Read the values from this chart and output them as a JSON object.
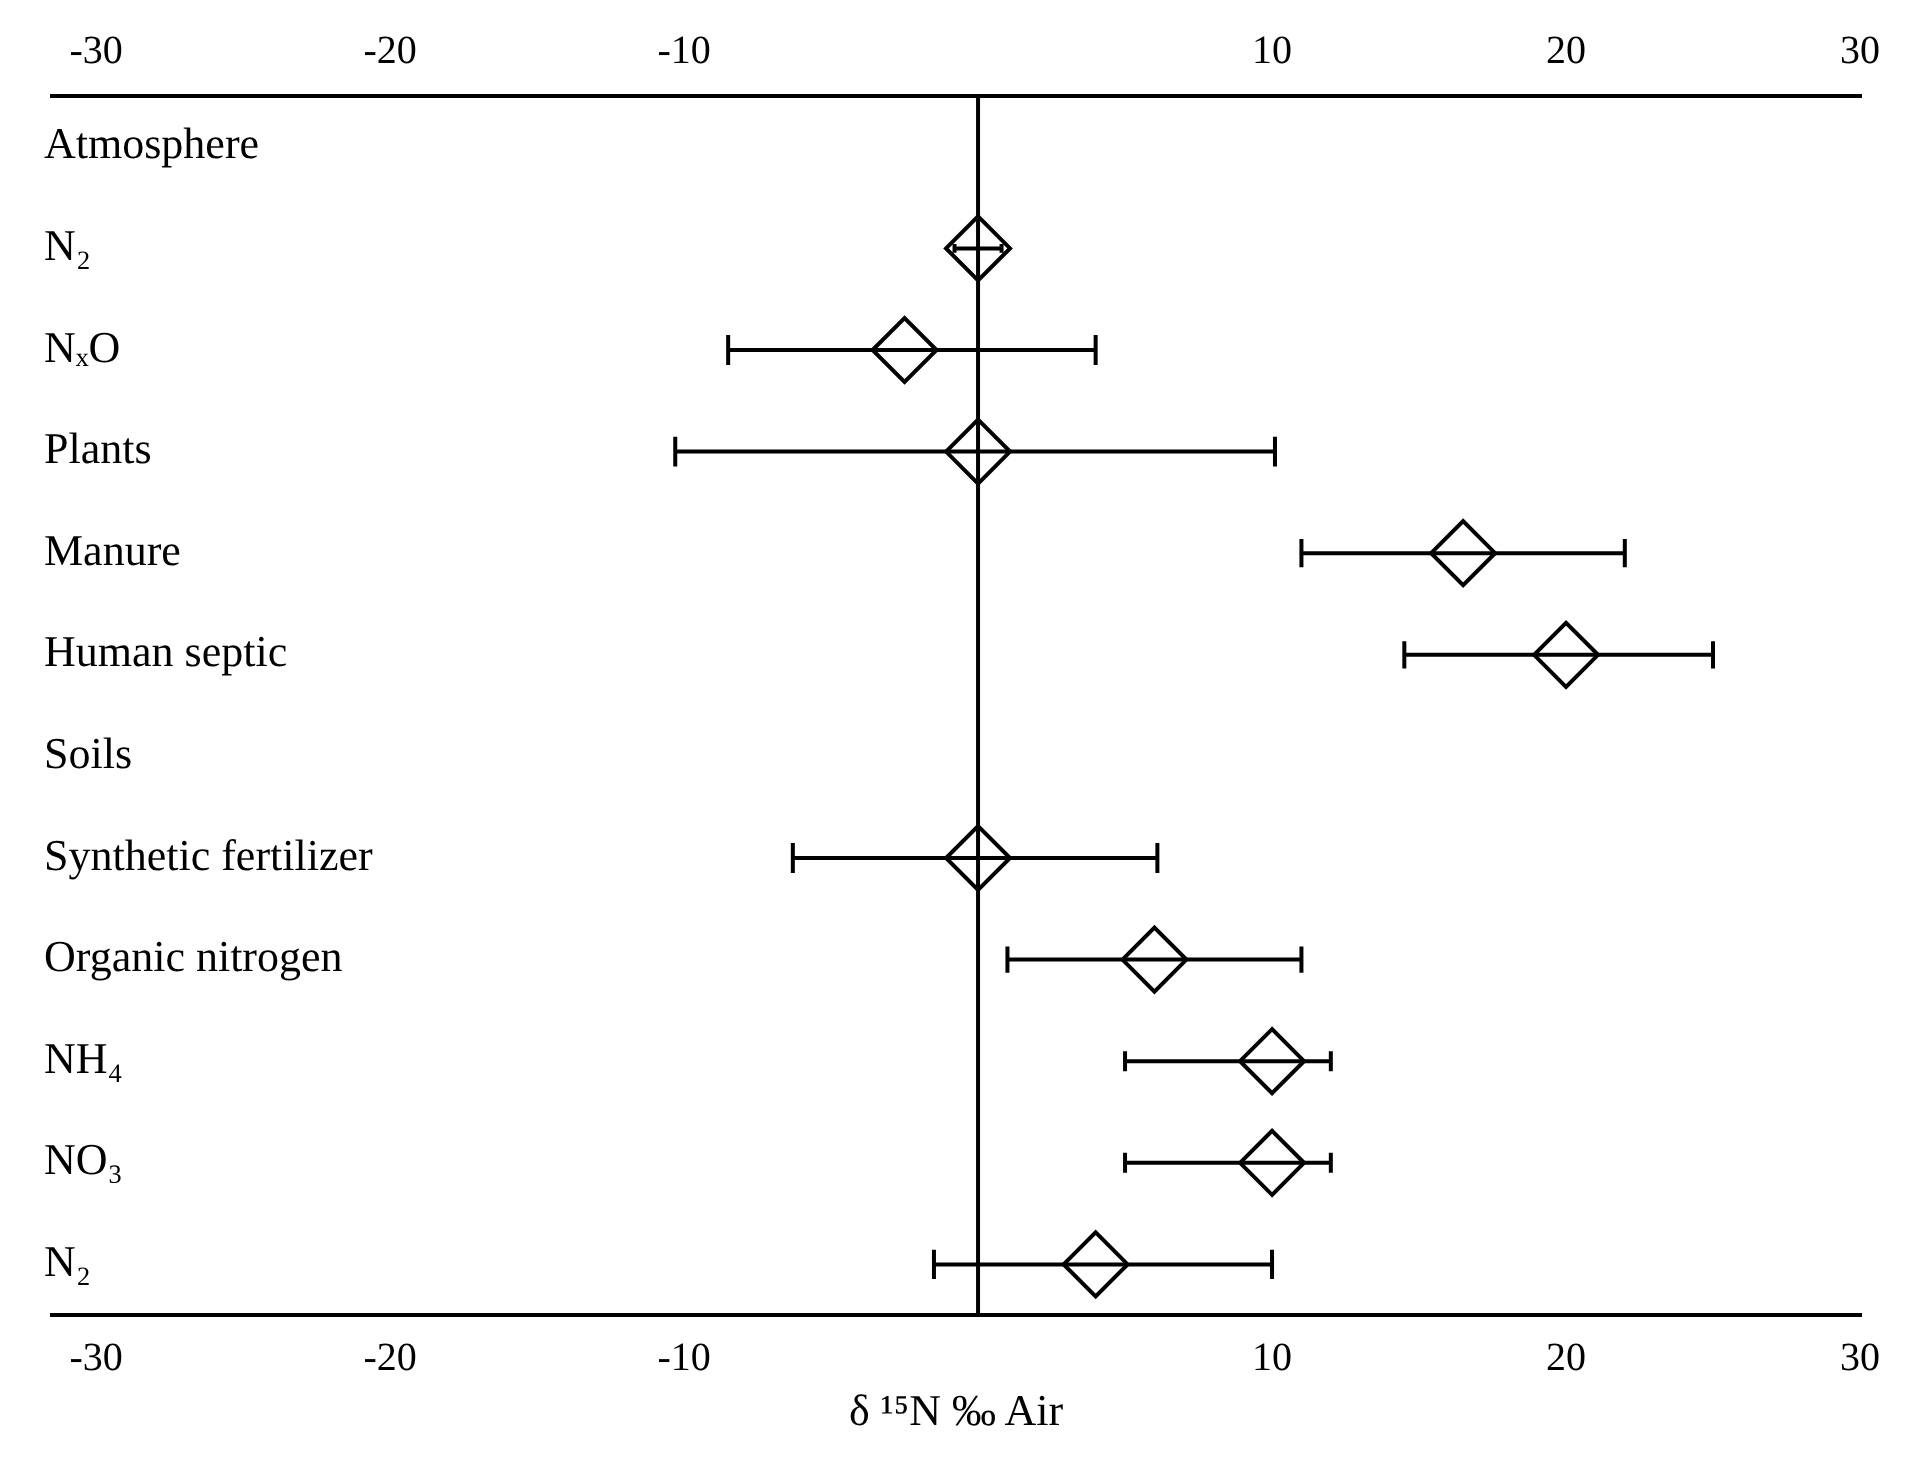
{
  "chart_data": {
    "type": "scatter",
    "orientation": "horizontal",
    "xlabel": "δ ¹⁵N ‰ Air",
    "categories": [
      "Atmosphere",
      "N₂",
      "NₓO",
      "Plants",
      "Manure",
      "Human septic",
      "Soils",
      "Synthetic fertilizer",
      "Organic nitrogen",
      "NH₄",
      "NO₃",
      "N₂"
    ],
    "series": [
      {
        "color": "#000000",
        "marker": "diamond",
        "values": [
          null,
          0,
          -2.5,
          0,
          16.5,
          20,
          null,
          0,
          6,
          10,
          10,
          4
        ],
        "errors": [
          null,
          [
            -0.8,
            0.8
          ],
          [
            -8.5,
            4
          ],
          [
            -10.3,
            10.1
          ],
          [
            11,
            22
          ],
          [
            14.5,
            25
          ],
          null,
          [
            -6.3,
            6.1
          ],
          [
            1,
            11
          ],
          [
            5,
            12
          ],
          [
            5,
            12
          ],
          [
            -1.5,
            10
          ]
        ]
      }
    ],
    "xlim": [
      -31.5,
      30
    ],
    "xticks": [
      -30,
      -20,
      -10,
      10,
      20,
      30
    ],
    "x2lim": [
      -31.5,
      30
    ],
    "x2ticks": [
      -30,
      -20,
      -10,
      10,
      20,
      30
    ],
    "ref_lines": [
      {
        "axis": "x",
        "value": 0,
        "color": "#000000"
      }
    ],
    "grid": false,
    "legend": false
  }
}
